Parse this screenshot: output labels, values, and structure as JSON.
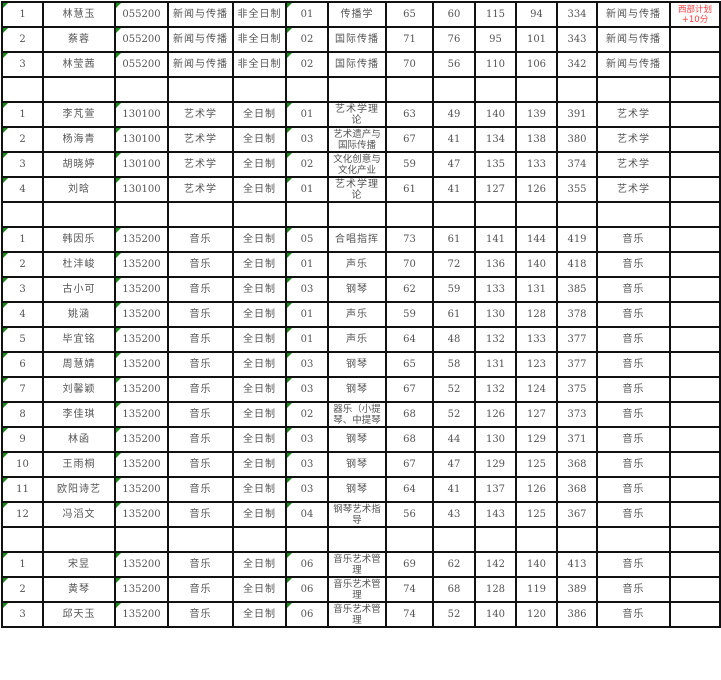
{
  "columns_note": "",
  "rows": [
    [
      "1",
      "林慧玉",
      "055200",
      "新闻与传播",
      "非全日制",
      "01",
      "传播学",
      "65",
      "60",
      "115",
      "94",
      "334",
      "新闻与传播",
      "西部计划+10分"
    ],
    [
      "2",
      "蔡蓉",
      "055200",
      "新闻与传播",
      "非全日制",
      "02",
      "国际传播",
      "71",
      "76",
      "95",
      "101",
      "343",
      "新闻与传播",
      ""
    ],
    [
      "3",
      "林莹茜",
      "055200",
      "新闻与传播",
      "非全日制",
      "02",
      "国际传播",
      "70",
      "56",
      "110",
      "106",
      "342",
      "新闻与传播",
      ""
    ],
    [],
    [
      "1",
      "李芃萱",
      "130100",
      "艺术学",
      "全日制",
      "01",
      "艺术学理论",
      "63",
      "49",
      "140",
      "139",
      "391",
      "艺术学",
      ""
    ],
    [
      "2",
      "杨海青",
      "130100",
      "艺术学",
      "全日制",
      "03",
      "艺术遗产与国际传播",
      "67",
      "41",
      "134",
      "138",
      "380",
      "艺术学",
      ""
    ],
    [
      "3",
      "胡晓婷",
      "130100",
      "艺术学",
      "全日制",
      "02",
      "文化创意与文化产业",
      "59",
      "47",
      "135",
      "133",
      "374",
      "艺术学",
      ""
    ],
    [
      "4",
      "刘晗",
      "130100",
      "艺术学",
      "全日制",
      "01",
      "艺术学理论",
      "61",
      "41",
      "127",
      "126",
      "355",
      "艺术学",
      ""
    ],
    [],
    [
      "1",
      "韩因乐",
      "135200",
      "音乐",
      "全日制",
      "05",
      "合唱指挥",
      "73",
      "61",
      "141",
      "144",
      "419",
      "音乐",
      ""
    ],
    [
      "2",
      "杜沣峻",
      "135200",
      "音乐",
      "全日制",
      "01",
      "声乐",
      "70",
      "72",
      "136",
      "140",
      "418",
      "音乐",
      ""
    ],
    [
      "3",
      "古小可",
      "135200",
      "音乐",
      "全日制",
      "03",
      "钢琴",
      "62",
      "59",
      "133",
      "131",
      "385",
      "音乐",
      ""
    ],
    [
      "4",
      "姚涵",
      "135200",
      "音乐",
      "全日制",
      "01",
      "声乐",
      "59",
      "61",
      "130",
      "128",
      "378",
      "音乐",
      ""
    ],
    [
      "5",
      "毕宜铭",
      "135200",
      "音乐",
      "全日制",
      "01",
      "声乐",
      "64",
      "48",
      "132",
      "133",
      "377",
      "音乐",
      ""
    ],
    [
      "6",
      "周慧婧",
      "135200",
      "音乐",
      "全日制",
      "03",
      "钢琴",
      "65",
      "58",
      "131",
      "123",
      "377",
      "音乐",
      ""
    ],
    [
      "7",
      "刘馨颖",
      "135200",
      "音乐",
      "全日制",
      "03",
      "钢琴",
      "67",
      "52",
      "132",
      "124",
      "375",
      "音乐",
      ""
    ],
    [
      "8",
      "李佳琪",
      "135200",
      "音乐",
      "全日制",
      "02",
      "器乐（小提琴、中提琴",
      "68",
      "52",
      "126",
      "127",
      "373",
      "音乐",
      ""
    ],
    [
      "9",
      "林函",
      "135200",
      "音乐",
      "全日制",
      "03",
      "钢琴",
      "68",
      "44",
      "130",
      "129",
      "371",
      "音乐",
      ""
    ],
    [
      "10",
      "王雨桐",
      "135200",
      "音乐",
      "全日制",
      "03",
      "钢琴",
      "67",
      "47",
      "129",
      "125",
      "368",
      "音乐",
      ""
    ],
    [
      "11",
      "欧阳诗艺",
      "135200",
      "音乐",
      "全日制",
      "03",
      "钢琴",
      "64",
      "41",
      "137",
      "126",
      "368",
      "音乐",
      ""
    ],
    [
      "12",
      "冯滔文",
      "135200",
      "音乐",
      "全日制",
      "04",
      "钢琴艺术指导",
      "56",
      "43",
      "143",
      "125",
      "367",
      "音乐",
      ""
    ],
    [],
    [
      "1",
      "宋昱",
      "135200",
      "音乐",
      "全日制",
      "06",
      "音乐艺术管理",
      "69",
      "62",
      "142",
      "140",
      "413",
      "音乐",
      ""
    ],
    [
      "2",
      "黄琴",
      "135200",
      "音乐",
      "全日制",
      "06",
      "音乐艺术管理",
      "74",
      "68",
      "128",
      "119",
      "389",
      "音乐",
      ""
    ],
    [
      "3",
      "邱天玉",
      "135200",
      "音乐",
      "全日制",
      "06",
      "音乐艺术管理",
      "74",
      "52",
      "140",
      "120",
      "386",
      "音乐",
      ""
    ]
  ],
  "colors": {
    "grid": "#111111",
    "text": "#555555",
    "note": "#ff3b3b",
    "corner_marker": "#1a8a1a"
  }
}
